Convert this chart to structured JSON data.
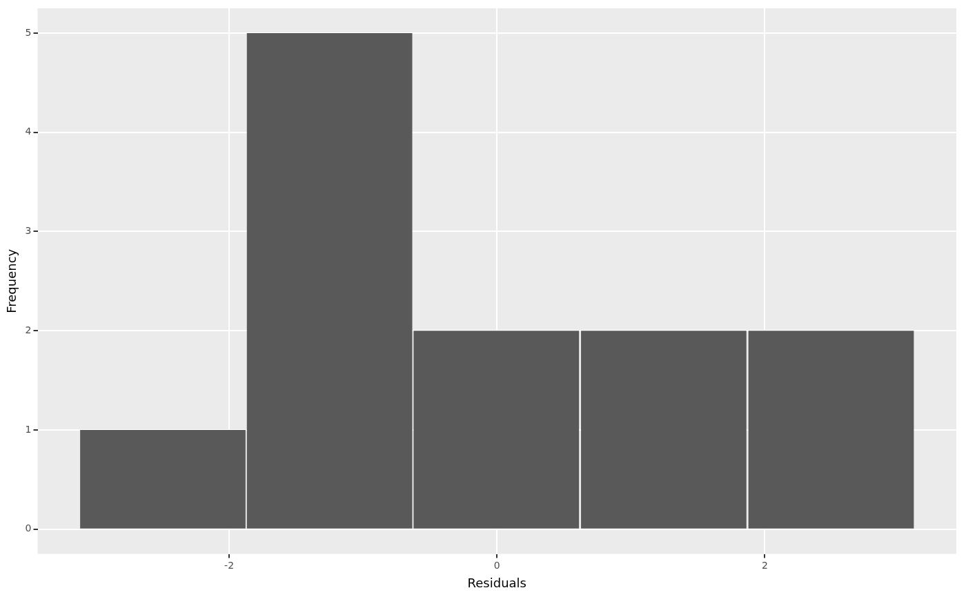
{
  "chart_data": {
    "type": "histogram",
    "xlabel": "Residuals",
    "ylabel": "Frequency",
    "bins": [
      -3.12,
      -1.87,
      -0.63,
      0.62,
      1.87,
      3.12
    ],
    "values": [
      1,
      5,
      2,
      2,
      2
    ],
    "color": "#595959",
    "xlim": [
      -3.43,
      3.43
    ],
    "xticks": [
      -2,
      0,
      2
    ],
    "ylim": [
      -0.25,
      5.25
    ],
    "yticks": [
      0,
      1,
      2,
      3,
      4,
      5
    ],
    "grid": true,
    "legend": false
  }
}
